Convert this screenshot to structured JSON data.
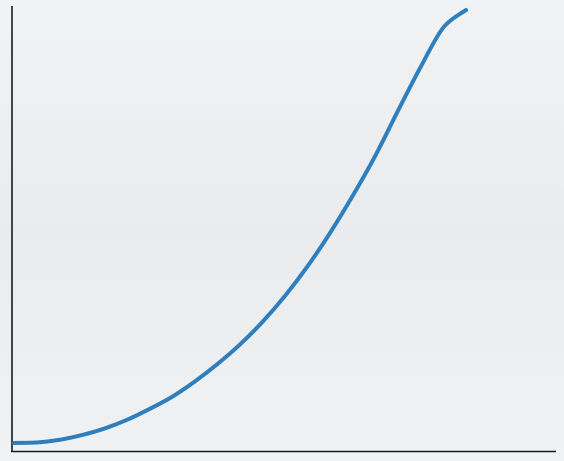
{
  "chart_data": {
    "type": "line",
    "title": "",
    "xlabel": "",
    "ylabel": "",
    "grid": false,
    "legend": "none",
    "xlim": [
      0,
      1
    ],
    "ylim": [
      0,
      1
    ],
    "series": [
      {
        "color": "#2f7fbf",
        "x": [
          0.0,
          0.05,
          0.1,
          0.15,
          0.2,
          0.25,
          0.3,
          0.35,
          0.4,
          0.45,
          0.5,
          0.55,
          0.6,
          0.65,
          0.7,
          0.75,
          0.8,
          0.85,
          0.9,
          0.95,
          1.0
        ],
        "y": [
          0.007,
          0.008,
          0.014,
          0.025,
          0.04,
          0.06,
          0.085,
          0.113,
          0.148,
          0.188,
          0.233,
          0.285,
          0.345,
          0.413,
          0.49,
          0.575,
          0.667,
          0.77,
          0.87,
          0.96,
          1.0
        ]
      }
    ]
  },
  "colors": {
    "background": "#eceef0",
    "axis": "#1a1a1a",
    "line": "#2f7fbf"
  }
}
